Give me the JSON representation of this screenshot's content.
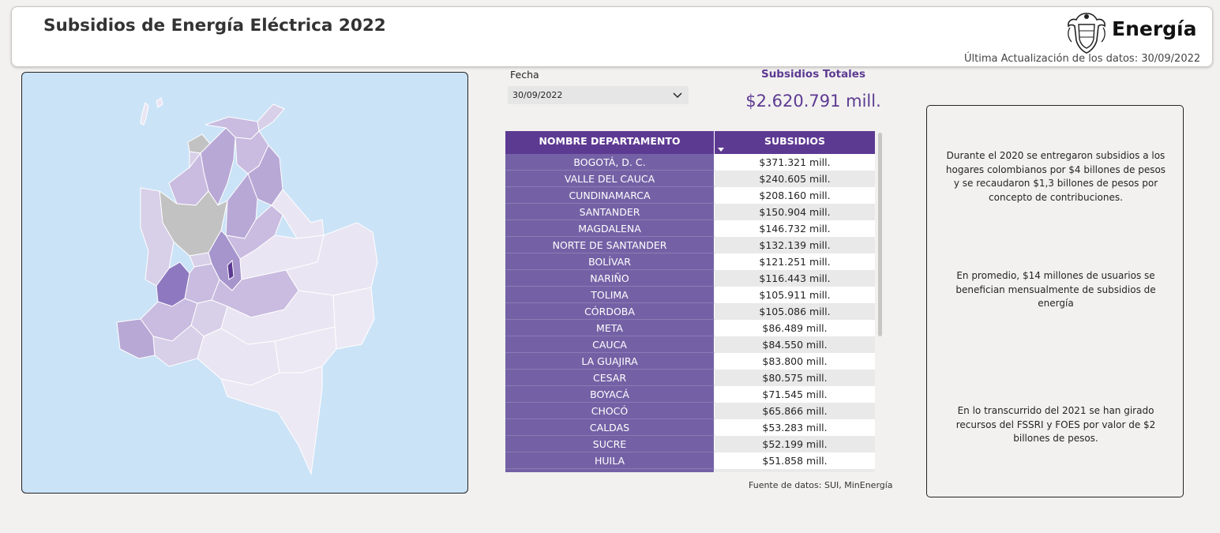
{
  "header": {
    "title": "Subsidios de Energía Eléctrica 2022",
    "brand": "Energía",
    "last_update": "Última Actualización de los datos: 30/09/2022"
  },
  "filter": {
    "label": "Fecha",
    "selected": "30/09/2022"
  },
  "kpi": {
    "label": "Subsidios Totales",
    "value": "$2.620.791 mill."
  },
  "table": {
    "columns": [
      "NOMBRE DEPARTAMENTO",
      "SUBSIDIOS"
    ],
    "rows": [
      {
        "dept": "BOGOTÁ, D. C.",
        "value": "$371.321 mill."
      },
      {
        "dept": "VALLE DEL CAUCA",
        "value": "$240.605 mill."
      },
      {
        "dept": "CUNDINAMARCA",
        "value": "$208.160 mill."
      },
      {
        "dept": "SANTANDER",
        "value": "$150.904 mill."
      },
      {
        "dept": "MAGDALENA",
        "value": "$146.732 mill."
      },
      {
        "dept": "NORTE DE SANTANDER",
        "value": "$132.139 mill."
      },
      {
        "dept": "BOLÍVAR",
        "value": "$121.251 mill."
      },
      {
        "dept": "NARIÑO",
        "value": "$116.443 mill."
      },
      {
        "dept": "TOLIMA",
        "value": "$105.911 mill."
      },
      {
        "dept": "CÓRDOBA",
        "value": "$105.086 mill."
      },
      {
        "dept": "META",
        "value": "$86.489 mill."
      },
      {
        "dept": "CAUCA",
        "value": "$84.550 mill."
      },
      {
        "dept": "LA GUAJIRA",
        "value": "$83.800 mill."
      },
      {
        "dept": "CESAR",
        "value": "$80.575 mill."
      },
      {
        "dept": "BOYACÁ",
        "value": "$71.545 mill."
      },
      {
        "dept": "CHOCÓ",
        "value": "$65.866 mill."
      },
      {
        "dept": "CALDAS",
        "value": "$53.283 mill."
      },
      {
        "dept": "SUCRE",
        "value": "$52.199 mill."
      },
      {
        "dept": "HUILA",
        "value": "$51.858 mill."
      },
      {
        "dept": "",
        "value": ""
      }
    ]
  },
  "source": "Fuente de datos: SUI, MinEnergía",
  "info": [
    "Durante el 2020 se entregaron subsidios a los hogares colombianos por $4 billones de pesos y se recaudaron $1,3 billones de pesos por concepto de contribuciones.",
    "En promedio, $14 millones de usuarios se benefician mensualmente de subsidios de energía",
    "En lo transcurrido del 2021 se han girado recursos del FSSRI y FOES por valor de $2 billones de pesos."
  ],
  "colors": {
    "accent": "#5d3a92",
    "table_dept_bg": "#7461a5",
    "map_bg": "#cbe3f7"
  }
}
